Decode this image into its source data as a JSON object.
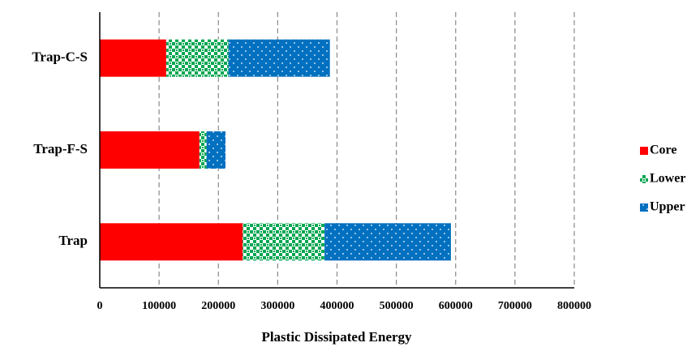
{
  "chart_data": {
    "type": "stacked_barh",
    "categories": [
      "Trap-C-S",
      "Trap-F-S",
      "Trap"
    ],
    "series": [
      {
        "name": "Core",
        "color": "#ff0000",
        "pattern": "solid",
        "values": [
          112000,
          168000,
          241000
        ]
      },
      {
        "name": "Lower",
        "color": "#00a651",
        "pattern": "checker",
        "values": [
          105000,
          12000,
          138000
        ]
      },
      {
        "name": "Upper",
        "color": "#0070c0",
        "pattern": "dots",
        "values": [
          171000,
          32000,
          213000
        ]
      }
    ],
    "x_label": "Plastic Dissipated Energy",
    "xlim": [
      0,
      800000
    ],
    "xticks": [
      0,
      100000,
      200000,
      300000,
      400000,
      500000,
      600000,
      700000,
      800000
    ],
    "grid": true,
    "legend": "right"
  }
}
